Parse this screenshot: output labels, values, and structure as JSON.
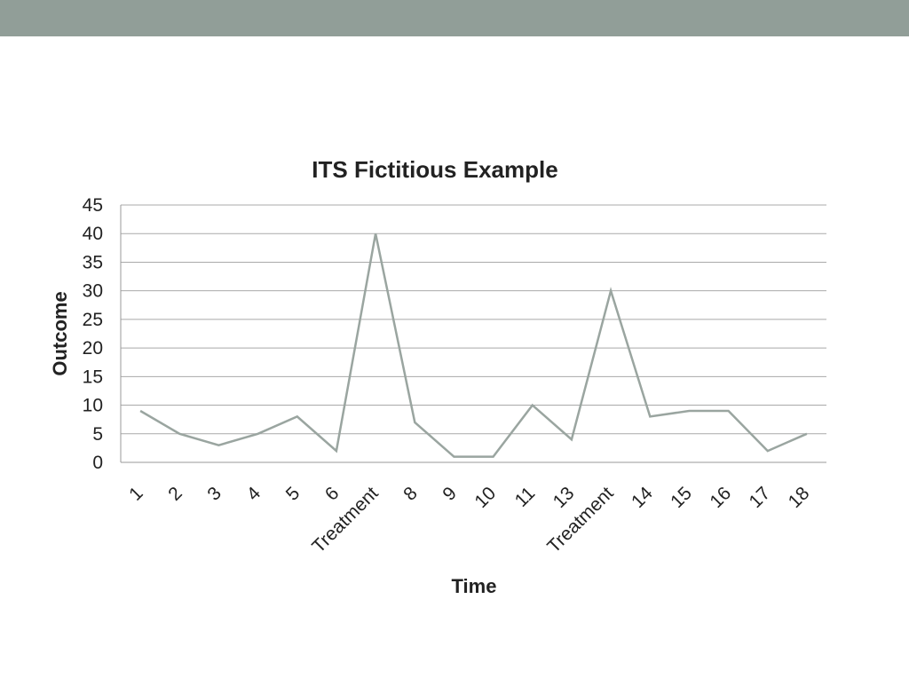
{
  "slide": {
    "band_color": "#919e98"
  },
  "chart_data": {
    "type": "line",
    "title": "ITS Fictitious Example",
    "xlabel": "Time",
    "ylabel": "Outcome",
    "categories": [
      "1",
      "2",
      "3",
      "4",
      "5",
      "6",
      "Treatment",
      "8",
      "9",
      "10",
      "11",
      "13",
      "Treatment",
      "14",
      "15",
      "16",
      "17",
      "18"
    ],
    "series": [
      {
        "values": [
          9,
          5,
          3,
          5,
          8,
          2,
          40,
          7,
          1,
          1,
          10,
          4,
          30,
          8,
          9,
          9,
          2,
          5
        ],
        "color": "#9aa5a0"
      }
    ],
    "ylim": [
      0,
      45
    ],
    "yticks": [
      0,
      5,
      10,
      15,
      20,
      25,
      30,
      35,
      40,
      45
    ],
    "grid": true,
    "legend": "none"
  }
}
